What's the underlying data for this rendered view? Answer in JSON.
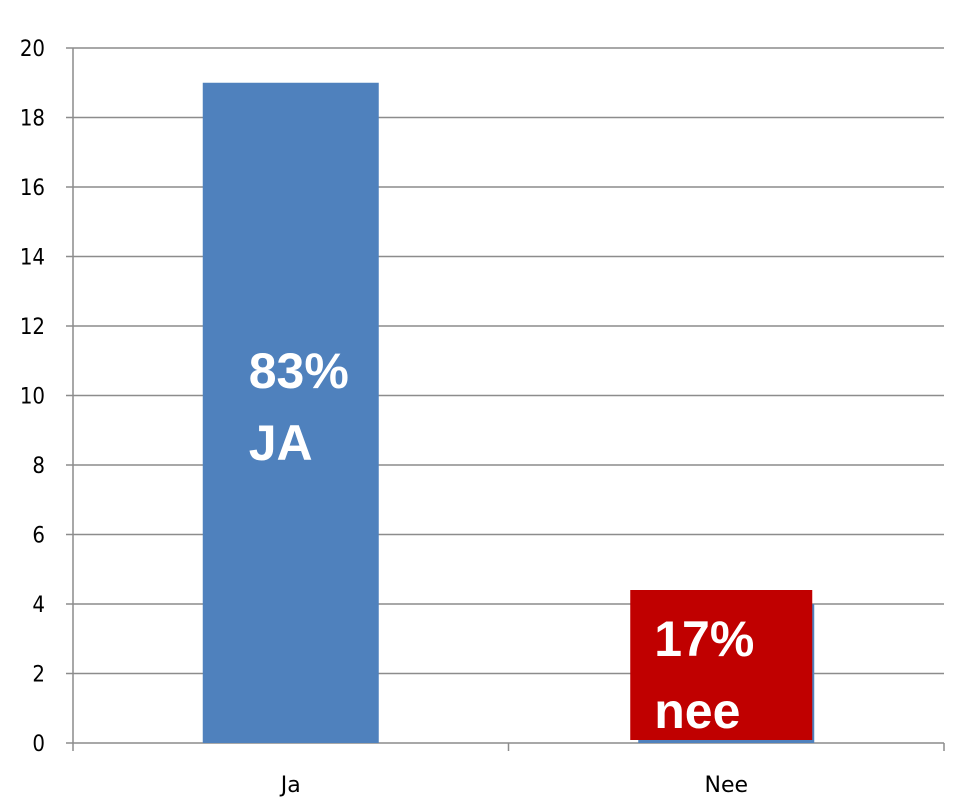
{
  "chart_data": {
    "type": "bar",
    "categories": [
      "Ja",
      "Nee"
    ],
    "values": [
      19,
      4
    ],
    "ylim": [
      0,
      20
    ],
    "yticks": [
      0,
      2,
      4,
      6,
      8,
      10,
      12,
      14,
      16,
      18,
      20
    ],
    "grid": true,
    "bar_color": "#4F81BD",
    "annotations": [
      {
        "category": "Ja",
        "lines": [
          "83%",
          "JA"
        ],
        "background": "#4F81BD",
        "text_color": "#FFFFFF"
      },
      {
        "category": "Nee",
        "lines": [
          "17%",
          "nee"
        ],
        "background": "#C00000",
        "text_color": "#FFFFFF"
      }
    ]
  }
}
